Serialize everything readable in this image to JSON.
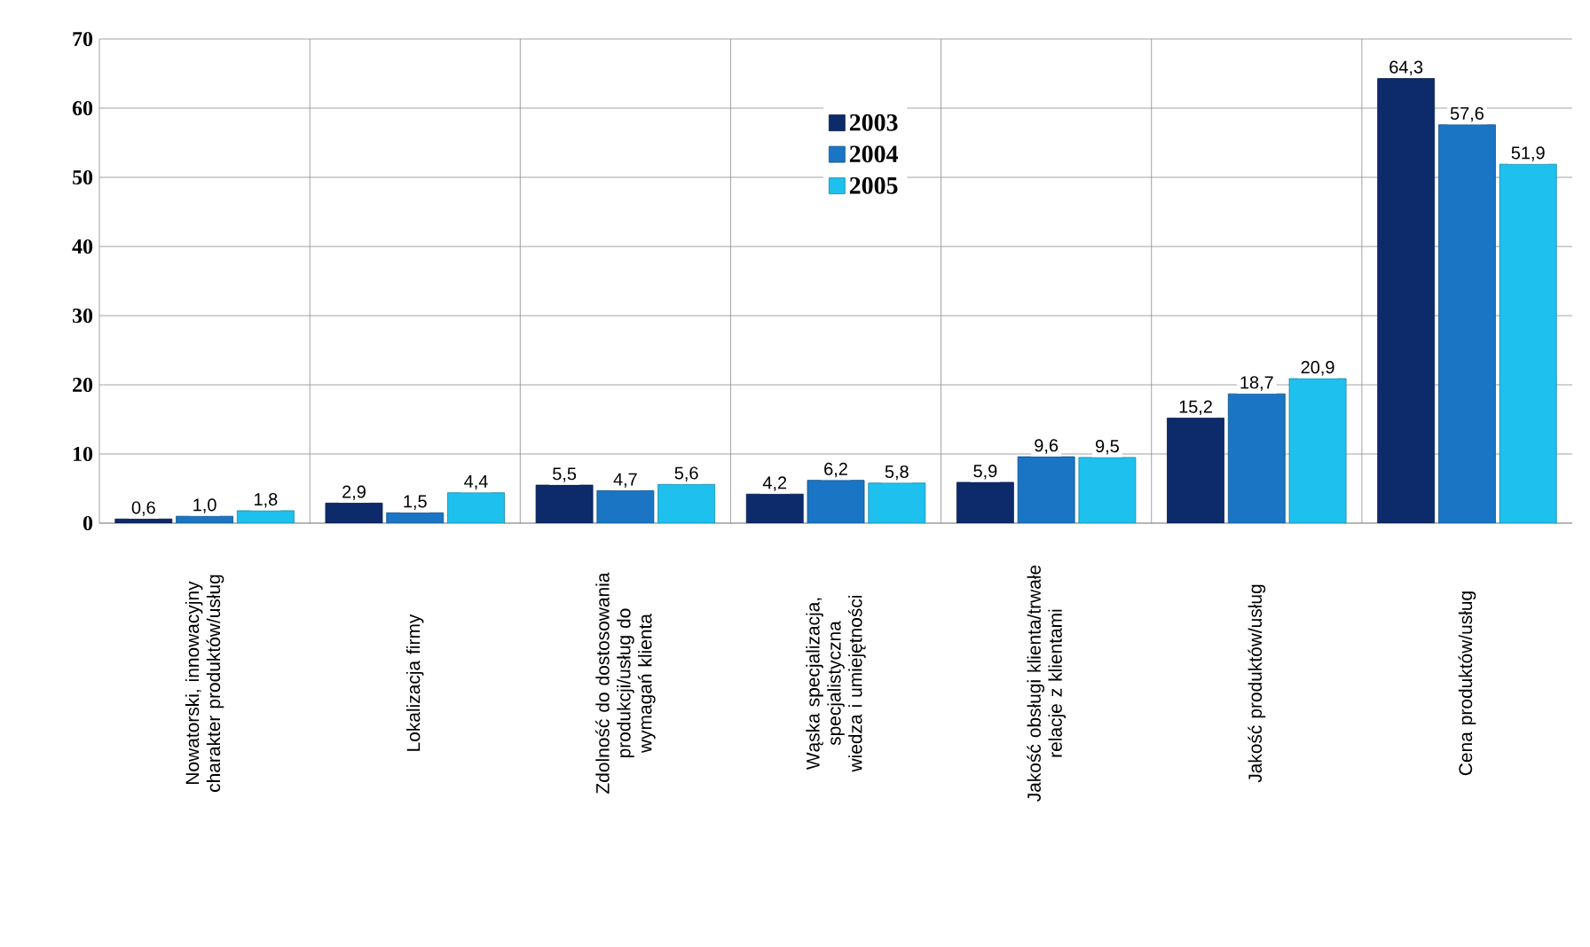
{
  "chart_data": {
    "type": "bar",
    "categories": [
      "Nowatorski, innowacyjny charakter produktów/usług",
      "Lokalizacja firmy",
      "Zdolność do dostosowania produkcji/usług do wymagań klienta",
      "Wąska specjalizacja, specjalistyczna wiedza i umiejętności",
      "Jakość obsługi klienta/trwałe relacje z klientami",
      "Jakość produktów/usług",
      "Cena produktów/usług"
    ],
    "series": [
      {
        "name": "2003",
        "color": "#0d2a6b",
        "values": [
          0.6,
          2.9,
          5.5,
          4.2,
          5.9,
          15.2,
          64.3
        ],
        "value_labels": [
          "0,6",
          "2,9",
          "5,5",
          "4,2",
          "5,9",
          "15,2",
          "64,3"
        ]
      },
      {
        "name": "2004",
        "color": "#1a75c4",
        "values": [
          1.0,
          1.5,
          4.7,
          6.2,
          9.6,
          18.7,
          57.6
        ],
        "value_labels": [
          "1,0",
          "1,5",
          "4,7",
          "6,2",
          "9,6",
          "18,7",
          "57,6"
        ]
      },
      {
        "name": "2005",
        "color": "#1ec0ee",
        "values": [
          1.8,
          4.4,
          5.6,
          5.8,
          9.5,
          20.9,
          51.9
        ],
        "value_labels": [
          "1,8",
          "4,4",
          "5,6",
          "5,8",
          "9,5",
          "20,9",
          "51,9"
        ]
      }
    ],
    "ylim": [
      0,
      70
    ],
    "yticks": [
      0,
      10,
      20,
      30,
      40,
      50,
      60,
      70
    ],
    "grid": true,
    "legend": "top"
  }
}
